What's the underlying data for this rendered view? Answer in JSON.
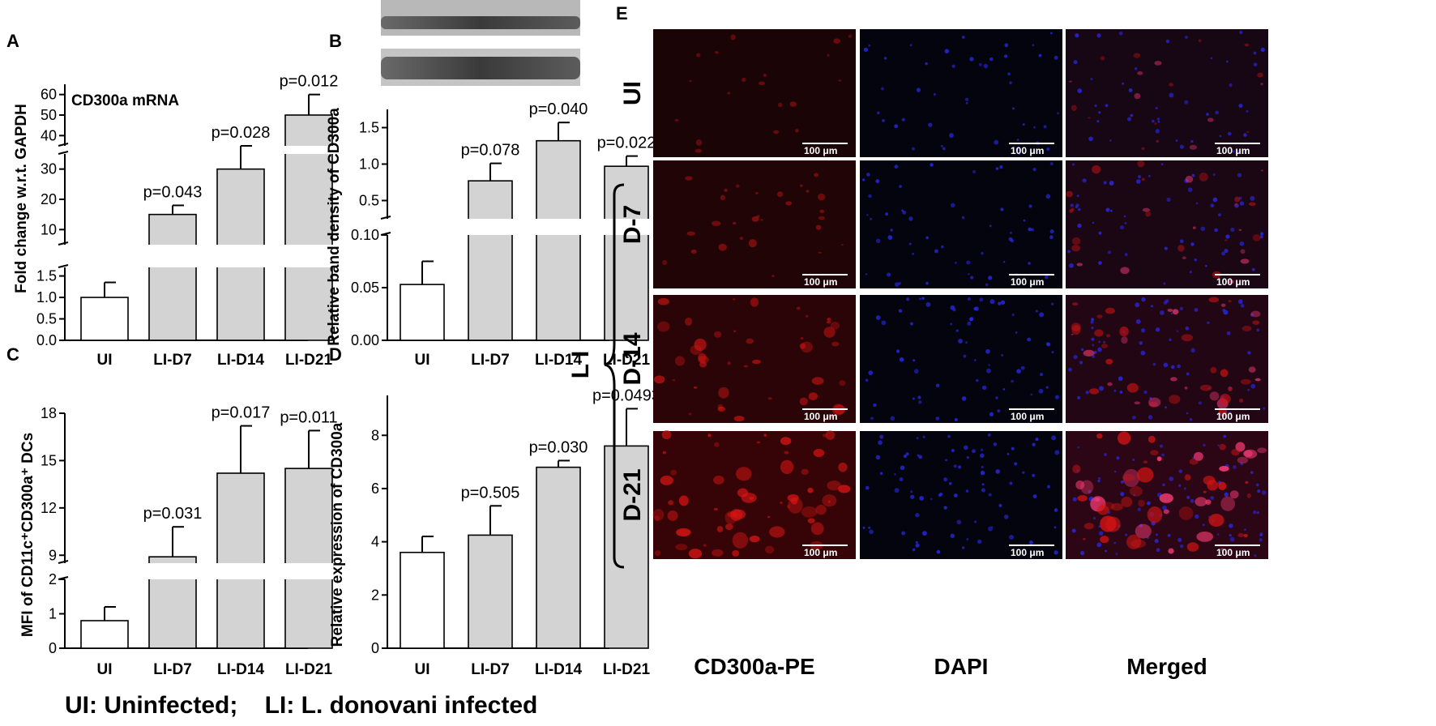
{
  "legend_note": "UI: Uninfected;    LI: L. donovani infected",
  "colors": {
    "control_fill": "#ffffff",
    "infected_fill": "#d3d3d3",
    "cd300a_channel": "#d21414",
    "dapi_channel": "#2828e6"
  },
  "chart_data": [
    {
      "panel": "A",
      "type": "bar",
      "inset_title": "CD300a mRNA",
      "ylabel": "Fold change w.r.t. GAPDH",
      "categories": [
        "UI",
        "LI-D7",
        "LI-D14",
        "LI-D21"
      ],
      "values": [
        1.0,
        15,
        30,
        50
      ],
      "errors": [
        0.35,
        3,
        5,
        10
      ],
      "pvalues": [
        "",
        "p=0.043",
        "p=0.028",
        "p=0.012"
      ],
      "broken_axis": true,
      "segments": [
        {
          "range": [
            0,
            1.7
          ],
          "ticks": [
            "0.0",
            "0.5",
            "1.0",
            "1.5"
          ]
        },
        {
          "range": [
            5,
            35
          ],
          "ticks": [
            "10",
            "20",
            "30"
          ]
        },
        {
          "range": [
            35,
            65
          ],
          "ticks": [
            "40",
            "50",
            "60"
          ]
        }
      ]
    },
    {
      "panel": "B",
      "type": "bar",
      "ylabel": "Relative band density of CD300a",
      "categories": [
        "UI",
        "LI-D7",
        "LI-D14",
        "LI-D21"
      ],
      "values": [
        0.053,
        0.77,
        1.32,
        0.97
      ],
      "errors": [
        0.022,
        0.24,
        0.25,
        0.14
      ],
      "pvalues": [
        "",
        "p=0.078",
        "p=0.040",
        "p=0.022"
      ],
      "broken_axis": true,
      "segments": [
        {
          "range": [
            0,
            0.1
          ],
          "ticks": [
            "0.00",
            "0.05",
            "0.10"
          ]
        },
        {
          "range": [
            0.25,
            1.75
          ],
          "ticks": [
            "0.5",
            "1.0",
            "1.5"
          ]
        }
      ]
    },
    {
      "panel": "C",
      "type": "bar",
      "ylabel": "MFI of CD11c⁺CD300a⁺ DCs",
      "categories": [
        "UI",
        "LI-D7",
        "LI-D14",
        "LI-D21"
      ],
      "values": [
        0.8,
        8.9,
        14.2,
        14.5
      ],
      "errors": [
        0.4,
        1.9,
        3.0,
        2.4
      ],
      "pvalues": [
        "",
        "p=0.031",
        "p=0.017",
        "p=0.011"
      ],
      "broken_axis": true,
      "segments": [
        {
          "range": [
            0,
            2
          ],
          "ticks": [
            "0",
            "1",
            "2"
          ]
        },
        {
          "range": [
            8.5,
            18
          ],
          "ticks": [
            "9",
            "12",
            "15",
            "18"
          ]
        }
      ]
    },
    {
      "panel": "D",
      "type": "bar",
      "ylabel": "Relative expression of CD300a",
      "categories": [
        "UI",
        "LI-D7",
        "LI-D14",
        "LI-D21"
      ],
      "values": [
        3.6,
        4.25,
        6.8,
        7.6
      ],
      "errors": [
        0.6,
        1.1,
        0.25,
        1.4
      ],
      "pvalues": [
        "",
        "p=0.505",
        "p=0.030",
        "p=0.0493"
      ],
      "broken_axis": false,
      "ylim": [
        0,
        9.5
      ],
      "segments": [
        {
          "range": [
            0,
            9.5
          ],
          "ticks": [
            "0",
            "2",
            "4",
            "6",
            "8"
          ]
        }
      ]
    }
  ],
  "panel_e": {
    "letter": "E",
    "row_labels": [
      "UI",
      "D-7",
      "D-14",
      "D-21"
    ],
    "group_label": "L I",
    "columns": [
      "CD300a-PE",
      "DAPI",
      "Merged"
    ],
    "scale_bar": "100 μm",
    "intensity_levels": [
      0.15,
      0.3,
      0.55,
      0.85
    ]
  }
}
